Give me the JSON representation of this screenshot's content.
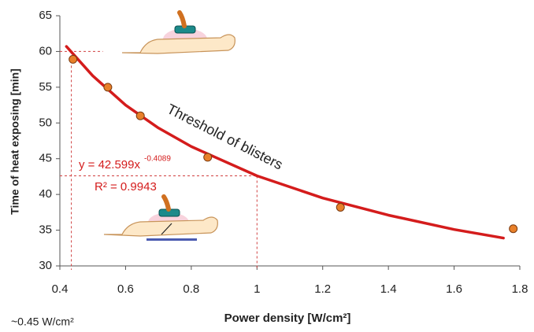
{
  "chart_data": {
    "type": "scatter",
    "x_label": "Power density [W/cm²]",
    "y_label": "Time of heat exposing [min]",
    "x": [
      0.44,
      0.546,
      0.645,
      0.85,
      1.254,
      1.78
    ],
    "values": [
      58.9,
      55,
      51,
      45.2,
      38.2,
      35.2
    ],
    "color": "#e8802a",
    "trendline": {
      "color": "#d41c1c",
      "x": [
        0.42,
        0.5,
        0.6,
        0.7,
        0.8,
        1.0,
        1.2,
        1.4,
        1.6,
        1.75
      ],
      "values": [
        60.7,
        56.6,
        52.5,
        49.3,
        46.7,
        42.6,
        39.5,
        37.1,
        35.1,
        33.9
      ]
    },
    "reference_lines": [
      {
        "x": 0.435,
        "y": 60
      },
      {
        "x": 1.0,
        "y": 42.6
      }
    ],
    "annotations": {
      "threshold": "Threshold of blisters",
      "equation": "y = 42.599x",
      "equation_exponent": "-0.4089",
      "r_squared": "R² = 0.9943",
      "note": "~0.45 W/cm²"
    },
    "xlim": [
      0.4,
      1.8
    ],
    "xticks": [
      0.4,
      0.6,
      0.8,
      1,
      1.2,
      1.4,
      1.6,
      1.8
    ],
    "ylim": [
      30,
      65
    ],
    "yticks": [
      30,
      35,
      40,
      45,
      50,
      55,
      60,
      65
    ]
  }
}
